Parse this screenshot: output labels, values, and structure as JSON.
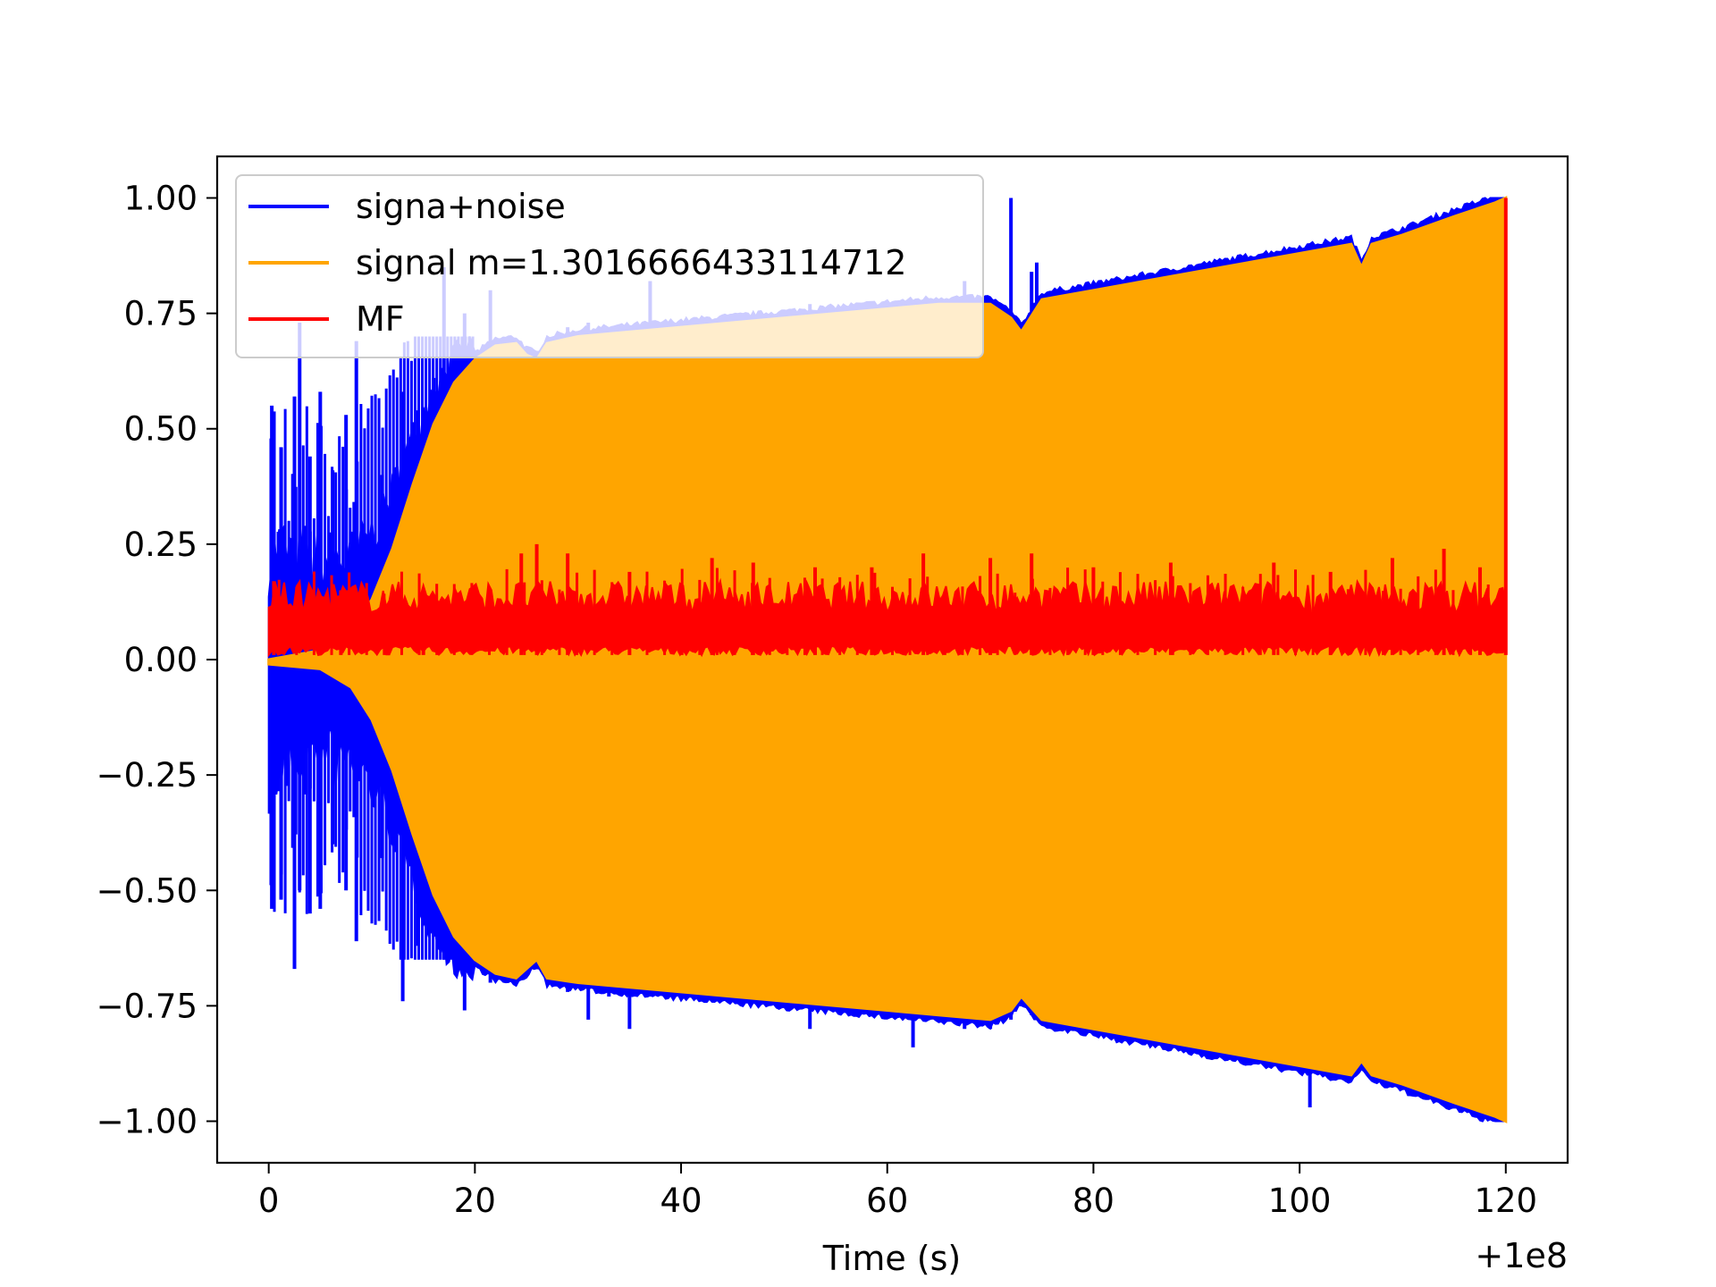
{
  "chart_data": {
    "type": "line",
    "title": "",
    "xlabel": "Time (s)",
    "ylabel": "",
    "x_offset_label": "+1e8",
    "x_offset": 100000000,
    "xlim": [
      -5,
      126
    ],
    "ylim": [
      -1.09,
      1.09
    ],
    "xticks": [
      0,
      20,
      40,
      60,
      80,
      100,
      120
    ],
    "xtick_labels": [
      "0",
      "20",
      "40",
      "60",
      "80",
      "100",
      "120"
    ],
    "yticks": [
      1.0,
      0.75,
      0.5,
      0.25,
      0.0,
      -0.25,
      -0.5,
      -0.75,
      -1.0
    ],
    "ytick_labels": [
      "1.00",
      "0.75",
      "0.50",
      "0.25",
      "0.00",
      "−0.25",
      "−0.50",
      "−0.75",
      "−1.00"
    ],
    "legend_location": "top-left",
    "series": [
      {
        "name": "signa+noise",
        "color": "#0000ff",
        "style": "dense oscillation; noisy spikes visible mainly for t < 35 s",
        "spikes": [
          {
            "x": 0.3,
            "top": 0.55,
            "bottom": -0.54
          },
          {
            "x": 1.2,
            "top": 0.46,
            "bottom": -0.52
          },
          {
            "x": 2.5,
            "top": 0.57,
            "bottom": -0.67
          },
          {
            "x": 3.0,
            "top": 0.73,
            "bottom": -0.5
          },
          {
            "x": 4.0,
            "top": 0.44,
            "bottom": -0.55
          },
          {
            "x": 5.0,
            "top": 0.58,
            "bottom": -0.54
          },
          {
            "x": 6.2,
            "top": 0.41,
            "bottom": -0.4
          },
          {
            "x": 7.5,
            "top": 0.53,
            "bottom": -0.5
          },
          {
            "x": 8.5,
            "top": 0.69,
            "bottom": -0.61
          },
          {
            "x": 11.0,
            "top": 0.4,
            "bottom": -0.43
          },
          {
            "x": 13.0,
            "top": 0.58,
            "bottom": -0.74
          },
          {
            "x": 14.5,
            "top": 0.54,
            "bottom": -0.62
          },
          {
            "x": 16.0,
            "top": 0.61,
            "bottom": -0.6
          },
          {
            "x": 17.0,
            "top": 0.85,
            "bottom": -0.65
          },
          {
            "x": 19.0,
            "top": 0.75,
            "bottom": -0.76
          },
          {
            "x": 21.5,
            "top": 0.8,
            "bottom": -0.7
          },
          {
            "x": 29.0,
            "top": 0.72,
            "bottom": -0.72
          },
          {
            "x": 31.0,
            "top": 0.73,
            "bottom": -0.78
          },
          {
            "x": 33.0,
            "top": 0.72,
            "bottom": -0.73
          },
          {
            "x": 35.0,
            "top": 0.72,
            "bottom": -0.8
          },
          {
            "x": 37.0,
            "top": 0.82,
            "bottom": -0.73
          },
          {
            "x": 52.5,
            "top": 0.77,
            "bottom": -0.8
          },
          {
            "x": 62.5,
            "top": 0.76,
            "bottom": -0.84
          },
          {
            "x": 67.5,
            "top": 0.82,
            "bottom": -0.8
          },
          {
            "x": 70.0,
            "top": 0.78,
            "bottom": -0.8
          },
          {
            "x": 72.0,
            "top": 1.0,
            "bottom": -0.78
          },
          {
            "x": 74.0,
            "top": 0.84,
            "bottom": -0.77
          },
          {
            "x": 74.5,
            "top": 0.86,
            "bottom": -0.76
          },
          {
            "x": 101.0,
            "top": 0.88,
            "bottom": -0.97
          }
        ]
      },
      {
        "name": "signal m=1.3016666433114712",
        "color": "#ffa500",
        "style": "dense chirp oscillation; envelope values below",
        "envelope_x": [
          0,
          5,
          8,
          10,
          12,
          14,
          16,
          18,
          20,
          22,
          24,
          25,
          26,
          27,
          30,
          40,
          50,
          60,
          65,
          70,
          72,
          73,
          75,
          80,
          90,
          100,
          105,
          106,
          107,
          110,
          115,
          119,
          120
        ],
        "envelope_upper": [
          0.0,
          0.02,
          0.06,
          0.13,
          0.24,
          0.38,
          0.51,
          0.6,
          0.65,
          0.68,
          0.685,
          0.66,
          0.65,
          0.685,
          0.7,
          0.72,
          0.74,
          0.76,
          0.77,
          0.77,
          0.74,
          0.71,
          0.78,
          0.8,
          0.84,
          0.88,
          0.9,
          0.85,
          0.9,
          0.92,
          0.96,
          0.99,
          1.0
        ],
        "envelope_lower": [
          -0.01,
          -0.02,
          -0.06,
          -0.13,
          -0.24,
          -0.38,
          -0.51,
          -0.6,
          -0.65,
          -0.68,
          -0.69,
          -0.67,
          -0.65,
          -0.69,
          -0.7,
          -0.72,
          -0.74,
          -0.76,
          -0.77,
          -0.78,
          -0.76,
          -0.73,
          -0.78,
          -0.8,
          -0.84,
          -0.88,
          -0.9,
          -0.87,
          -0.9,
          -0.92,
          -0.96,
          -0.99,
          -1.0
        ]
      },
      {
        "name": "MF",
        "color": "#ff0000",
        "style": "noisy band between ~0.01 and ~0.15, final spike at t=120",
        "band_lower": 0.01,
        "band_upper": 0.15,
        "peaks": [
          {
            "x": 0.5,
            "y": 0.17
          },
          {
            "x": 7.0,
            "y": 0.15
          },
          {
            "x": 15.0,
            "y": 0.15
          },
          {
            "x": 24.5,
            "y": 0.23
          },
          {
            "x": 26.0,
            "y": 0.25
          },
          {
            "x": 29.0,
            "y": 0.23
          },
          {
            "x": 35.0,
            "y": 0.19
          },
          {
            "x": 43.0,
            "y": 0.22
          },
          {
            "x": 47.0,
            "y": 0.21
          },
          {
            "x": 53.0,
            "y": 0.2
          },
          {
            "x": 58.5,
            "y": 0.2
          },
          {
            "x": 63.5,
            "y": 0.23
          },
          {
            "x": 70.0,
            "y": 0.22
          },
          {
            "x": 74.0,
            "y": 0.23
          },
          {
            "x": 80.0,
            "y": 0.2
          },
          {
            "x": 87.5,
            "y": 0.21
          },
          {
            "x": 97.5,
            "y": 0.21
          },
          {
            "x": 103.0,
            "y": 0.19
          },
          {
            "x": 109.0,
            "y": 0.22
          },
          {
            "x": 114.0,
            "y": 0.24
          },
          {
            "x": 117.5,
            "y": 0.2
          },
          {
            "x": 120.0,
            "y": 1.0
          }
        ]
      }
    ]
  }
}
